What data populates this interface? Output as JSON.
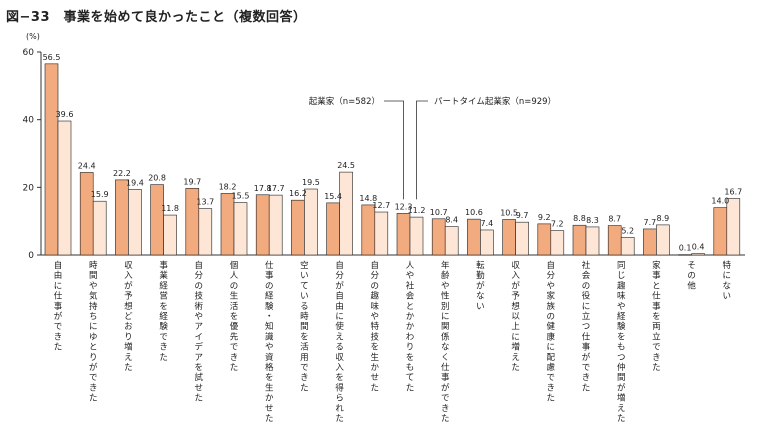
{
  "chart_data": {
    "type": "bar",
    "title": "図−33　事業を始めて良かったこと（複数回答）",
    "ylabel": "(%)",
    "ylim": [
      0,
      60
    ],
    "yticks": [
      0,
      20,
      40,
      60
    ],
    "legend_placement": "top-right",
    "categories": [
      "自由に仕事ができた",
      "時間や気持ちにゆとりができた",
      "収入が予想どおり増えた",
      "事業経営を経験できた",
      "自分の技術やアイデアを試せた",
      "個人の生活を優先できた",
      "仕事の経験・知識や資格を生かせた",
      "空いている時間を活用できた",
      "自分が自由に使える収入を得られた",
      "自分の趣味や特技を生かせた",
      "人や社会とかかわりをもてた",
      "年齢や性別に関係なく仕事ができた",
      "転勤がない",
      "収入が予想以上に増えた",
      "自分や家族の健康に配慮できた",
      "社会の役に立つ仕事ができた",
      "同じ趣味や経験をもつ仲間が増えた",
      "家事と仕事を両立できた",
      "その他",
      "特にない"
    ],
    "series": [
      {
        "name": "起業家（n=582）",
        "color": "#f2ab7f",
        "values": [
          56.5,
          24.4,
          22.2,
          20.8,
          19.7,
          18.2,
          17.8,
          16.2,
          15.4,
          14.8,
          12.3,
          10.7,
          10.6,
          10.5,
          9.2,
          8.8,
          8.7,
          7.7,
          0.1,
          14.0
        ]
      },
      {
        "name": "パートタイム起業家（n=929）",
        "color": "#fde6d6",
        "values": [
          39.6,
          15.9,
          19.4,
          11.8,
          13.7,
          15.5,
          17.7,
          19.5,
          24.5,
          12.7,
          11.2,
          8.4,
          7.4,
          9.7,
          7.2,
          8.3,
          5.2,
          8.9,
          0.4,
          16.7
        ]
      }
    ]
  }
}
